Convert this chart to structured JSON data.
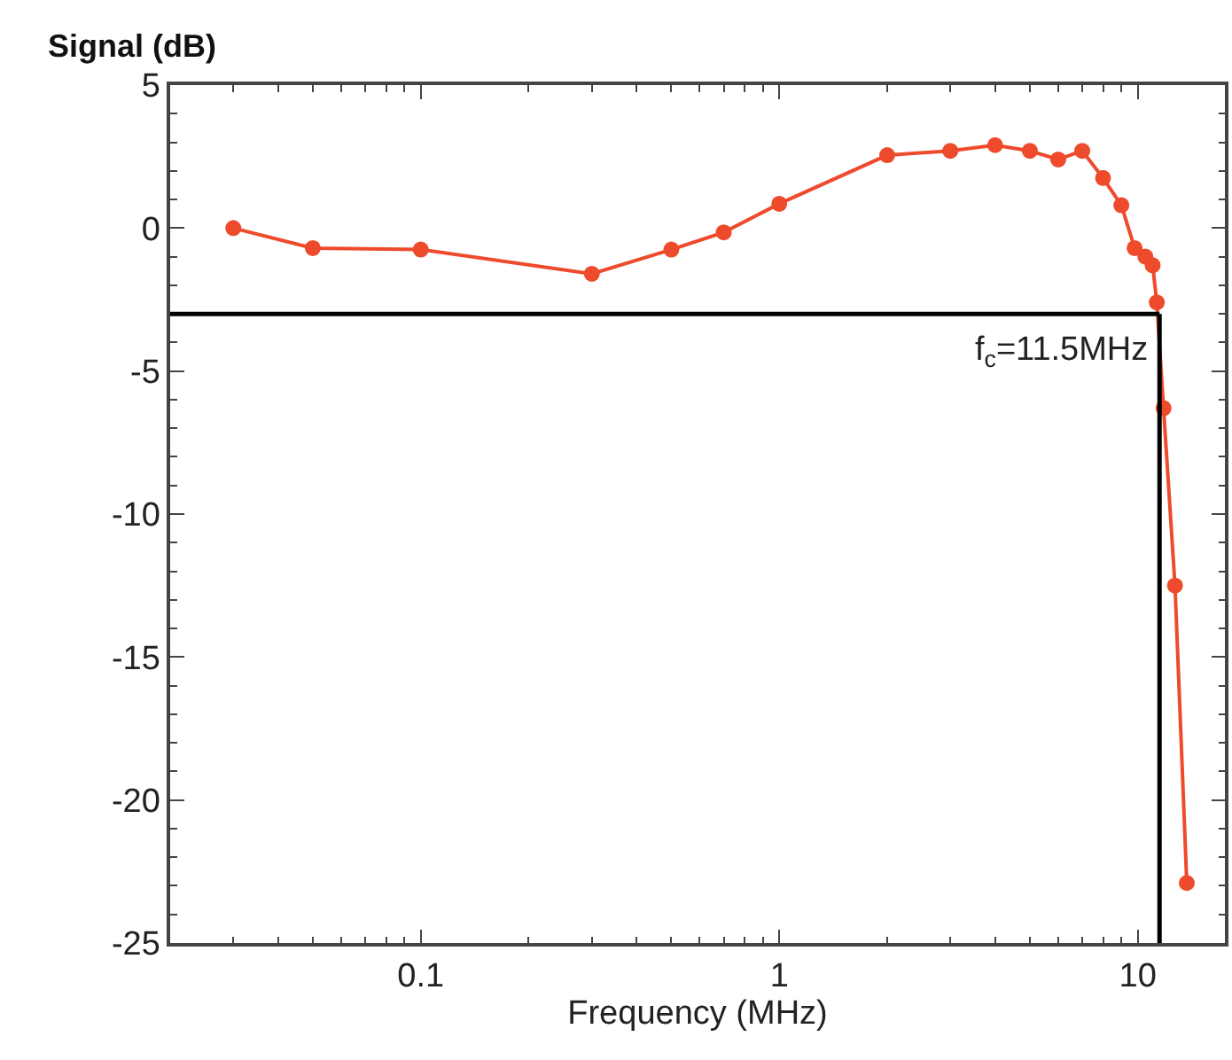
{
  "chart_data": {
    "type": "line",
    "ylabel": "Signal (dB)",
    "xlabel": "Frequency (MHz)",
    "log": "x",
    "xlim": [
      0.02,
      17.5
    ],
    "ylim": [
      -25,
      5
    ],
    "xticks": [
      0.1,
      1,
      10
    ],
    "yticks": [
      -25,
      -20,
      -15,
      -10,
      -5,
      0,
      5
    ],
    "marker": "circle",
    "line_style": "solid",
    "series": [
      {
        "color": "#ee4a2c",
        "x": [
          0.03,
          0.05,
          0.1,
          0.3,
          0.5,
          0.7,
          1,
          2,
          3,
          4,
          5,
          6,
          7,
          8,
          9,
          9.8,
          10.5,
          11,
          11.3,
          11.8,
          12.7,
          13.7
        ],
        "values": [
          0,
          -0.7,
          -0.75,
          -1.6,
          -0.75,
          -0.15,
          0.85,
          2.55,
          2.7,
          2.9,
          2.7,
          2.4,
          2.7,
          1.75,
          0.8,
          -0.7,
          -1.0,
          -1.3,
          -2.6,
          -6.3,
          -12.5,
          -22.9
        ]
      }
    ],
    "ref_lines": [
      {
        "axis": "y",
        "value": -3,
        "color": "#000000"
      },
      {
        "axis": "x",
        "value": 11.5,
        "color": "#000000",
        "label": "f$_{c}$=11.5MHz"
      }
    ]
  }
}
